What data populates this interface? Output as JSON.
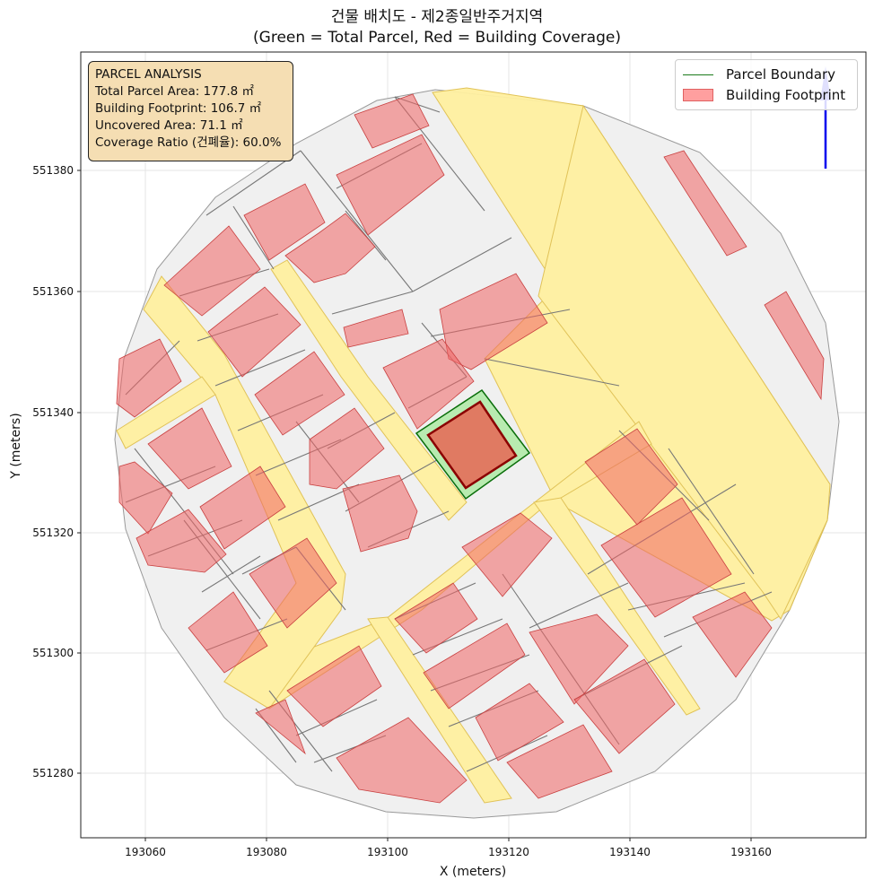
{
  "title_line1": "건물 배치도 - 제2종일반주거지역",
  "title_line2": "(Green = Total Parcel, Red = Building Coverage)",
  "xlabel": "X (meters)",
  "ylabel": "Y (meters)",
  "x_ticks": [
    "193060",
    "193080",
    "193100",
    "193120",
    "193140",
    "193160"
  ],
  "y_ticks": [
    "551380",
    "551360",
    "551340",
    "551320",
    "551300",
    "551280"
  ],
  "info": {
    "heading": "PARCEL ANALYSIS",
    "total": "Total Parcel Area: 177.8 ㎡",
    "footprint": "Building Footprint: 106.7 ㎡",
    "uncovered": "Uncovered Area: 71.1 ㎡",
    "ratio": "Coverage Ratio (건폐율): 60.0%"
  },
  "legend": {
    "parcel": "Parcel Boundary",
    "building": "Building Footprint"
  },
  "colors": {
    "road": "#fff0a0",
    "parcel_fill": "#f0f0f0",
    "building": "#f08080",
    "target_parcel": "#90ee90",
    "target_building": "#cd3a1e",
    "north_arrow": "#0000ee"
  },
  "icons": {
    "north_arrow": "north-arrow-icon"
  }
}
